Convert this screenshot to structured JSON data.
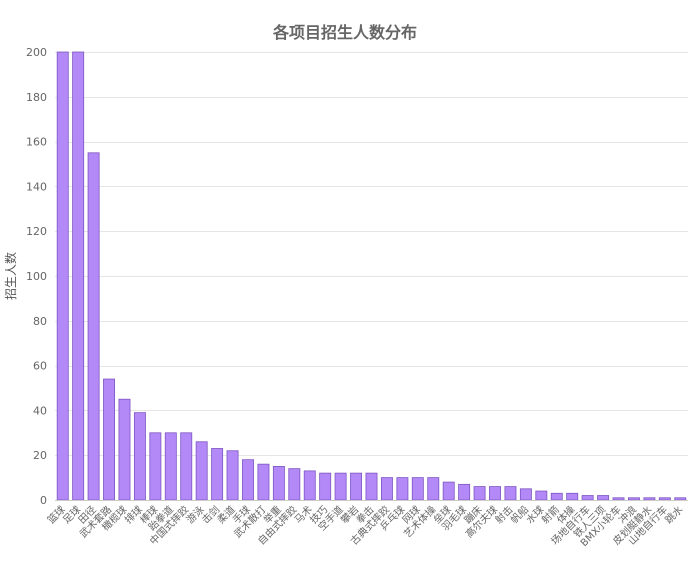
{
  "chart_data": {
    "type": "bar",
    "title": "各项目招生人数分布",
    "xlabel": "",
    "ylabel": "招生人数",
    "ylim": [
      0,
      200
    ],
    "yticks": [
      0,
      20,
      40,
      60,
      80,
      100,
      120,
      140,
      160,
      180,
      200
    ],
    "grid": true,
    "legend": "none",
    "bar_color": "#b388f7",
    "bar_edge_color": "#7e57c2",
    "categories": [
      "篮球",
      "足球",
      "田径",
      "武术套路",
      "橄榄球",
      "排球",
      "棒球",
      "跆拳道",
      "中国式摔跤",
      "游泳",
      "击剑",
      "柔道",
      "手球",
      "武术散打",
      "举重",
      "自由式摔跤",
      "马术",
      "技巧",
      "空手道",
      "攀岩",
      "拳击",
      "古典式摔跤",
      "乒乓球",
      "网球",
      "艺术体操",
      "垒球",
      "羽毛球",
      "蹦床",
      "高尔夫球",
      "射击",
      "帆船",
      "水球",
      "射箭",
      "体操",
      "场地自行车",
      "铁人三项",
      "BMX小轮车",
      "冲浪",
      "皮划艇静水",
      "山地自行车",
      "跳水"
    ],
    "values": [
      200,
      200,
      155,
      54,
      45,
      39,
      30,
      30,
      30,
      26,
      23,
      22,
      18,
      16,
      15,
      14,
      13,
      12,
      12,
      12,
      12,
      10,
      10,
      10,
      10,
      8,
      7,
      6,
      6,
      6,
      5,
      4,
      3,
      3,
      2,
      2,
      1,
      1,
      1,
      1,
      1
    ]
  }
}
